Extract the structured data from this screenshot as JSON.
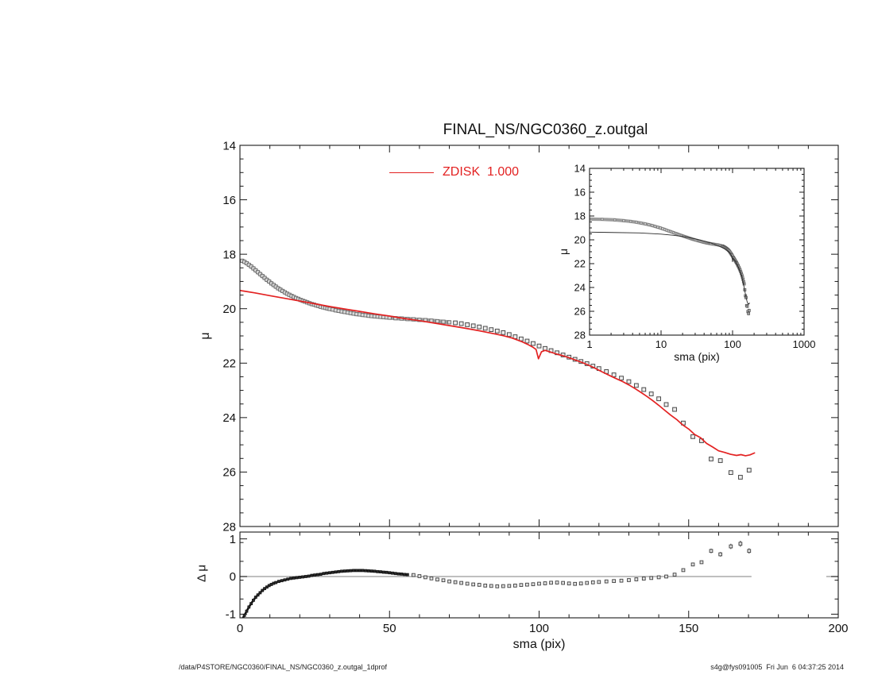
{
  "title": "FINAL_NS/NGC0360_z.outgal",
  "footer": {
    "left": "/data/P4STORE/NGC0360/FINAL_NS/NGC0360_z.outgal_1dprof",
    "right": "s4g@fys091005  Fri Jun  6 04:37:25 2014"
  },
  "colors": {
    "model": "#e32222",
    "zero_line": "#aaaaaa",
    "frame": "#1a1a1a",
    "band": "#9c9c9c",
    "marker_edge": "#4a4a4a",
    "marker_fill": "#ededed",
    "inset_model": "#2a2a2a",
    "residual_dense": "#101010"
  },
  "points": {
    "profile_dense": [
      [
        0.75,
        18.24
      ],
      [
        1.5,
        18.28
      ],
      [
        2.25,
        18.33
      ],
      [
        3,
        18.39
      ],
      [
        3.75,
        18.45
      ],
      [
        4.5,
        18.52
      ],
      [
        5.25,
        18.59
      ],
      [
        6,
        18.66
      ],
      [
        6.75,
        18.73
      ],
      [
        7.5,
        18.8
      ],
      [
        8.25,
        18.87
      ],
      [
        9,
        18.94
      ],
      [
        9.75,
        19.0
      ],
      [
        10.5,
        19.07
      ],
      [
        11.25,
        19.13
      ],
      [
        12,
        19.19
      ],
      [
        12.75,
        19.25
      ],
      [
        13.5,
        19.3
      ],
      [
        14.25,
        19.35
      ],
      [
        15,
        19.4
      ],
      [
        15.75,
        19.45
      ],
      [
        16.5,
        19.49
      ],
      [
        17.25,
        19.53
      ],
      [
        18,
        19.57
      ],
      [
        18.75,
        19.61
      ],
      [
        19.5,
        19.64
      ],
      [
        20.25,
        19.68
      ],
      [
        21,
        19.71
      ],
      [
        21.75,
        19.74
      ],
      [
        22.5,
        19.77
      ],
      [
        23.25,
        19.8
      ],
      [
        24,
        19.83
      ],
      [
        24.75,
        19.85
      ],
      [
        25.5,
        19.88
      ],
      [
        26.25,
        19.9
      ],
      [
        27,
        19.93
      ],
      [
        27.75,
        19.95
      ],
      [
        28.5,
        19.97
      ],
      [
        29.25,
        19.99
      ],
      [
        30,
        20.01
      ],
      [
        31,
        20.03
      ],
      [
        32,
        20.06
      ],
      [
        33,
        20.08
      ],
      [
        34,
        20.1
      ],
      [
        35,
        20.12
      ],
      [
        36,
        20.14
      ],
      [
        37,
        20.16
      ],
      [
        38,
        20.18
      ],
      [
        39,
        20.2
      ],
      [
        40,
        20.21
      ],
      [
        41,
        20.23
      ],
      [
        42,
        20.24
      ],
      [
        43,
        20.26
      ],
      [
        44,
        20.27
      ],
      [
        45,
        20.28
      ],
      [
        46,
        20.29
      ],
      [
        47,
        20.3
      ],
      [
        48,
        20.31
      ],
      [
        49,
        20.32
      ],
      [
        50,
        20.33
      ],
      [
        52,
        20.35
      ],
      [
        54,
        20.36
      ],
      [
        56,
        20.38
      ],
      [
        58,
        20.39
      ],
      [
        60,
        20.41
      ],
      [
        62,
        20.42
      ],
      [
        64,
        20.44
      ],
      [
        66,
        20.46
      ],
      [
        68,
        20.48
      ],
      [
        70,
        20.5
      ]
    ],
    "profile_sparse": [
      [
        72,
        20.52
      ],
      [
        74,
        20.55
      ],
      [
        76,
        20.59
      ],
      [
        78,
        20.63
      ],
      [
        80,
        20.67
      ],
      [
        82,
        20.72
      ],
      [
        84,
        20.77
      ],
      [
        86,
        20.82
      ],
      [
        88,
        20.88
      ],
      [
        90,
        20.95
      ],
      [
        92,
        21.03
      ],
      [
        94,
        21.11
      ],
      [
        96,
        21.19
      ],
      [
        98,
        21.28
      ],
      [
        100,
        21.37
      ],
      [
        102,
        21.46
      ],
      [
        104,
        21.54
      ],
      [
        106,
        21.62
      ],
      [
        108,
        21.7
      ],
      [
        110,
        21.78
      ],
      [
        112,
        21.86
      ],
      [
        114,
        21.94
      ],
      [
        116,
        22.02
      ],
      [
        118,
        22.11
      ],
      [
        120,
        22.2
      ],
      [
        122.5,
        22.31
      ],
      [
        125,
        22.43
      ],
      [
        127.5,
        22.55
      ],
      [
        130,
        22.68
      ],
      [
        132.5,
        22.82
      ],
      [
        135,
        22.97
      ],
      [
        137.5,
        23.13
      ],
      [
        140,
        23.31
      ],
      [
        142.5,
        23.52
      ],
      [
        145.3,
        23.7
      ],
      [
        148.2,
        24.2
      ],
      [
        151.4,
        24.7
      ],
      [
        154.3,
        24.85
      ],
      [
        157.5,
        25.52
      ],
      [
        160.6,
        25.58
      ],
      [
        164.1,
        26.02
      ],
      [
        167.3,
        26.19
      ],
      [
        170.2,
        25.93
      ]
    ],
    "model": [
      [
        0,
        19.33
      ],
      [
        1,
        19.35
      ],
      [
        5,
        19.42
      ],
      [
        10,
        19.52
      ],
      [
        15,
        19.62
      ],
      [
        20,
        19.72
      ],
      [
        25,
        19.82
      ],
      [
        30,
        19.92
      ],
      [
        35,
        20.01
      ],
      [
        40,
        20.1
      ],
      [
        45,
        20.19
      ],
      [
        50,
        20.27
      ],
      [
        55,
        20.36
      ],
      [
        60,
        20.44
      ],
      [
        65,
        20.53
      ],
      [
        70,
        20.62
      ],
      [
        75,
        20.71
      ],
      [
        80,
        20.81
      ],
      [
        85,
        20.92
      ],
      [
        88,
        20.99
      ],
      [
        91,
        21.08
      ],
      [
        94,
        21.2
      ],
      [
        96,
        21.3
      ],
      [
        98,
        21.42
      ],
      [
        99,
        21.5
      ],
      [
        99.8,
        21.84
      ],
      [
        100.8,
        21.58
      ],
      [
        102,
        21.53
      ],
      [
        104,
        21.6
      ],
      [
        106,
        21.67
      ],
      [
        108,
        21.73
      ],
      [
        110,
        21.8
      ],
      [
        112,
        21.88
      ],
      [
        114,
        21.96
      ],
      [
        116,
        22.05
      ],
      [
        118,
        22.15
      ],
      [
        120,
        22.26
      ],
      [
        122,
        22.37
      ],
      [
        124,
        22.48
      ],
      [
        126,
        22.58
      ],
      [
        128,
        22.68
      ],
      [
        130,
        22.8
      ],
      [
        132,
        22.93
      ],
      [
        134,
        23.07
      ],
      [
        136,
        23.22
      ],
      [
        138,
        23.38
      ],
      [
        140,
        23.55
      ],
      [
        142,
        23.73
      ],
      [
        144,
        23.91
      ],
      [
        146,
        24.07
      ],
      [
        148,
        24.27
      ],
      [
        150,
        24.42
      ],
      [
        152,
        24.62
      ],
      [
        154,
        24.74
      ],
      [
        156,
        24.95
      ],
      [
        158,
        25.08
      ],
      [
        160,
        25.22
      ],
      [
        162,
        25.28
      ],
      [
        164,
        25.35
      ],
      [
        166,
        25.39
      ],
      [
        167.5,
        25.36
      ],
      [
        169,
        25.4
      ],
      [
        170.5,
        25.37
      ],
      [
        172,
        25.3
      ]
    ],
    "residual_dense": [
      [
        0.75,
        -1.14
      ],
      [
        1.5,
        -1.03
      ],
      [
        2.25,
        -0.92
      ],
      [
        3,
        -0.81
      ],
      [
        3.75,
        -0.72
      ],
      [
        4.5,
        -0.63
      ],
      [
        5.25,
        -0.55
      ],
      [
        6,
        -0.49
      ],
      [
        6.75,
        -0.43
      ],
      [
        7.5,
        -0.37
      ],
      [
        8.25,
        -0.32
      ],
      [
        9,
        -0.28
      ],
      [
        9.75,
        -0.24
      ],
      [
        10.5,
        -0.21
      ],
      [
        11.25,
        -0.18
      ],
      [
        12,
        -0.16
      ],
      [
        13,
        -0.13
      ],
      [
        14,
        -0.11
      ],
      [
        15,
        -0.09
      ],
      [
        16,
        -0.07
      ],
      [
        17,
        -0.05
      ],
      [
        18,
        -0.04
      ],
      [
        19,
        -0.03
      ],
      [
        20,
        -0.02
      ],
      [
        21,
        -0.01
      ],
      [
        22,
        0.0
      ],
      [
        23,
        0.01
      ],
      [
        24,
        0.03
      ],
      [
        25,
        0.04
      ],
      [
        26,
        0.05
      ],
      [
        27,
        0.06
      ],
      [
        28,
        0.08
      ],
      [
        29,
        0.09
      ],
      [
        30,
        0.1
      ],
      [
        31,
        0.11
      ],
      [
        32,
        0.12
      ],
      [
        33,
        0.13
      ],
      [
        34,
        0.14
      ],
      [
        35,
        0.145
      ],
      [
        36,
        0.15
      ],
      [
        37,
        0.155
      ],
      [
        38,
        0.16
      ],
      [
        39,
        0.16
      ],
      [
        40,
        0.16
      ],
      [
        41,
        0.16
      ],
      [
        42,
        0.155
      ],
      [
        43,
        0.15
      ],
      [
        44,
        0.145
      ],
      [
        45,
        0.14
      ],
      [
        46,
        0.13
      ],
      [
        47,
        0.125
      ],
      [
        48,
        0.115
      ],
      [
        49,
        0.11
      ],
      [
        50,
        0.1
      ],
      [
        51,
        0.09
      ],
      [
        52,
        0.08
      ],
      [
        53,
        0.07
      ],
      [
        54,
        0.065
      ],
      [
        55,
        0.055
      ],
      [
        56,
        0.05
      ]
    ],
    "residual_sparse": [
      [
        58,
        0.04
      ],
      [
        60,
        0.01
      ],
      [
        62,
        -0.02
      ],
      [
        64,
        -0.05
      ],
      [
        66,
        -0.08
      ],
      [
        68,
        -0.1
      ],
      [
        70,
        -0.13
      ],
      [
        72,
        -0.15
      ],
      [
        74,
        -0.17
      ],
      [
        76,
        -0.19
      ],
      [
        78,
        -0.21
      ],
      [
        80,
        -0.22
      ],
      [
        82,
        -0.24
      ],
      [
        84,
        -0.25
      ],
      [
        86,
        -0.26
      ],
      [
        88,
        -0.255
      ],
      [
        90,
        -0.25
      ],
      [
        92,
        -0.24
      ],
      [
        94,
        -0.225
      ],
      [
        96,
        -0.215
      ],
      [
        98,
        -0.205
      ],
      [
        100,
        -0.19
      ],
      [
        102,
        -0.18
      ],
      [
        104,
        -0.165
      ],
      [
        106,
        -0.16
      ],
      [
        108,
        -0.17
      ],
      [
        110,
        -0.185
      ],
      [
        112,
        -0.195
      ],
      [
        114,
        -0.185
      ],
      [
        116,
        -0.17
      ],
      [
        118,
        -0.155
      ],
      [
        120,
        -0.145
      ],
      [
        122.5,
        -0.13
      ],
      [
        125,
        -0.12
      ],
      [
        127.5,
        -0.11
      ],
      [
        130,
        -0.095
      ],
      [
        132.5,
        -0.075
      ],
      [
        135,
        -0.055
      ],
      [
        137.5,
        -0.04
      ],
      [
        140,
        -0.02
      ],
      [
        142.5,
        0.0
      ],
      [
        145.3,
        0.05
      ],
      [
        148.2,
        0.17
      ],
      [
        151.4,
        0.32
      ],
      [
        154.3,
        0.38
      ],
      [
        157.5,
        0.68,
        0.06
      ],
      [
        160.6,
        0.59,
        0.06
      ],
      [
        164.1,
        0.8,
        0.07
      ],
      [
        167.3,
        0.87,
        0.08
      ],
      [
        170.2,
        0.68,
        0.07
      ]
    ]
  },
  "chart_data": [
    {
      "id": "main",
      "type": "scatter",
      "title": "FINAL_NS/NGC0360_z.outgal",
      "xlabel": "",
      "ylabel": "μ",
      "xscale": "linear",
      "xlim": [
        0,
        200
      ],
      "ylim": [
        14,
        28
      ],
      "y_inverted": true,
      "grid": false,
      "xticks": {
        "major": [
          0,
          50,
          100,
          150,
          200
        ],
        "minor_step": 10,
        "show_labels": false
      },
      "yticks": {
        "major": [
          14,
          16,
          18,
          20,
          22,
          24,
          26,
          28
        ],
        "minor_step": 0.5,
        "show_labels": true
      },
      "legend": {
        "label": "ZDISK  1.000",
        "position": "top-center",
        "color": "#e32222"
      },
      "series": [
        {
          "name": "mu-profile-inner",
          "style": "band-squares",
          "points_key": "profile_dense"
        },
        {
          "name": "mu-profile-outer",
          "style": "open-squares",
          "points_key": "profile_sparse"
        },
        {
          "name": "zdisk-model",
          "style": "red-line",
          "points_key": "model"
        }
      ]
    },
    {
      "id": "inset",
      "type": "scatter",
      "title": "",
      "xlabel": "sma (pix)",
      "ylabel": "μ",
      "xscale": "log",
      "xlim": [
        1,
        1000
      ],
      "ylim": [
        14,
        28
      ],
      "y_inverted": true,
      "grid": false,
      "xticks": {
        "major": [
          1,
          10,
          100,
          1000
        ],
        "show_labels": true
      },
      "yticks": {
        "major": [
          14,
          16,
          18,
          20,
          22,
          24,
          26,
          28
        ],
        "minor_step": 0.5,
        "show_labels": true
      },
      "series": [
        {
          "name": "mu-profile-inner-log",
          "style": "inset-band",
          "points_key": "profile_dense"
        },
        {
          "name": "mu-profile-outer-log",
          "style": "inset-tail",
          "points_key": "profile_sparse"
        },
        {
          "name": "model-log",
          "style": "dark-line",
          "points_key": "model"
        }
      ]
    },
    {
      "id": "residual",
      "type": "scatter",
      "title": "",
      "xlabel": "sma (pix)",
      "ylabel": "Δ μ",
      "xscale": "linear",
      "xlim": [
        0,
        200
      ],
      "ylim": [
        -1.097,
        1.181
      ],
      "y_inverted": false,
      "grid": false,
      "xticks": {
        "major": [
          0,
          50,
          100,
          150,
          200
        ],
        "minor_step": 10,
        "show_labels": true
      },
      "yticks": {
        "major": [
          -1,
          0,
          1
        ],
        "minor_step": 0.5,
        "show_labels": true
      },
      "zero_line_segments": [
        [
          0,
          171
        ],
        [
          196,
          201
        ]
      ],
      "series": [
        {
          "name": "residual-inner",
          "style": "black-band",
          "points_key": "residual_dense"
        },
        {
          "name": "residual-outer",
          "style": "small-squares",
          "points_key": "residual_sparse"
        }
      ]
    }
  ]
}
